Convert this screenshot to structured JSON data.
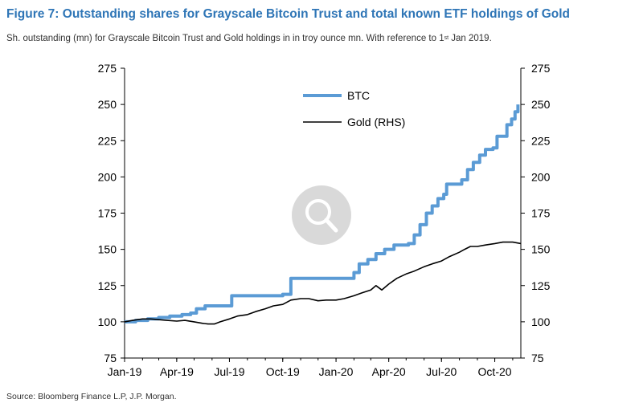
{
  "title": "Figure 7: Outstanding shares for Grayscale Bitcoin Trust and total known ETF holdings of Gold",
  "subtitle_main": "Sh. outstanding (mn) for Grayscale Bitcoin Trust and Gold holdings in in troy ounce mn. With reference to 1",
  "subtitle_sup": "st",
  "subtitle_end": " Jan 2019.",
  "source": "Source: Bloomberg Finance L.P, J.P. Morgan.",
  "colors": {
    "title": "#2e75b6",
    "btc": "#5b9bd5",
    "gold": "#000000",
    "watermark": "#d9d9d9"
  },
  "chart_data": {
    "type": "line",
    "x_ticks": [
      "Jan-19",
      "Apr-19",
      "Jul-19",
      "Oct-19",
      "Jan-20",
      "Apr-20",
      "Jul-20",
      "Oct-20"
    ],
    "x_range": [
      "2019-01-01",
      "2020-11-15"
    ],
    "ylim_left": [
      75,
      275
    ],
    "ylim_right": [
      75,
      275
    ],
    "y_ticks_left": [
      75,
      100,
      125,
      150,
      175,
      200,
      225,
      250,
      275
    ],
    "y_ticks_right": [
      75,
      100,
      125,
      150,
      175,
      200,
      225,
      250,
      275
    ],
    "legend_position": "top-center",
    "grid": false,
    "series": [
      {
        "name": "BTC",
        "axis": "left",
        "color": "#5b9bd5",
        "step": true,
        "points": [
          [
            "2019-01-01",
            100
          ],
          [
            "2019-01-20",
            101
          ],
          [
            "2019-02-10",
            102
          ],
          [
            "2019-03-01",
            103
          ],
          [
            "2019-03-20",
            104
          ],
          [
            "2019-04-10",
            105
          ],
          [
            "2019-04-25",
            106
          ],
          [
            "2019-05-05",
            109
          ],
          [
            "2019-05-20",
            111
          ],
          [
            "2019-07-01",
            111
          ],
          [
            "2019-07-05",
            118
          ],
          [
            "2019-09-30",
            118
          ],
          [
            "2019-10-01",
            119
          ],
          [
            "2019-10-15",
            130
          ],
          [
            "2020-01-31",
            130
          ],
          [
            "2020-02-01",
            134
          ],
          [
            "2020-02-10",
            140
          ],
          [
            "2020-02-25",
            143
          ],
          [
            "2020-03-10",
            147
          ],
          [
            "2020-03-25",
            150
          ],
          [
            "2020-04-10",
            153
          ],
          [
            "2020-04-25",
            153
          ],
          [
            "2020-05-05",
            154
          ],
          [
            "2020-05-15",
            160
          ],
          [
            "2020-05-25",
            167
          ],
          [
            "2020-06-05",
            175
          ],
          [
            "2020-06-15",
            180
          ],
          [
            "2020-06-25",
            185
          ],
          [
            "2020-07-05",
            188
          ],
          [
            "2020-07-10",
            195
          ],
          [
            "2020-07-25",
            195
          ],
          [
            "2020-08-05",
            198
          ],
          [
            "2020-08-15",
            205
          ],
          [
            "2020-08-25",
            210
          ],
          [
            "2020-09-05",
            215
          ],
          [
            "2020-09-15",
            219
          ],
          [
            "2020-09-28",
            220
          ],
          [
            "2020-10-05",
            228
          ],
          [
            "2020-10-20",
            228
          ],
          [
            "2020-10-22",
            236
          ],
          [
            "2020-10-30",
            240
          ],
          [
            "2020-11-05",
            245
          ],
          [
            "2020-11-10",
            250
          ]
        ]
      },
      {
        "name": "Gold (RHS)",
        "axis": "right",
        "color": "#000000",
        "step": false,
        "points": [
          [
            "2019-01-01",
            100
          ],
          [
            "2019-01-15",
            101
          ],
          [
            "2019-02-01",
            102
          ],
          [
            "2019-02-15",
            102
          ],
          [
            "2019-03-01",
            101.5
          ],
          [
            "2019-03-15",
            101
          ],
          [
            "2019-04-01",
            100.5
          ],
          [
            "2019-04-15",
            101
          ],
          [
            "2019-05-01",
            100
          ],
          [
            "2019-05-15",
            99
          ],
          [
            "2019-05-25",
            98.5
          ],
          [
            "2019-06-05",
            98.5
          ],
          [
            "2019-06-15",
            100
          ],
          [
            "2019-07-01",
            102
          ],
          [
            "2019-07-15",
            104
          ],
          [
            "2019-08-01",
            105
          ],
          [
            "2019-08-15",
            107
          ],
          [
            "2019-09-01",
            109
          ],
          [
            "2019-09-15",
            111
          ],
          [
            "2019-10-01",
            112
          ],
          [
            "2019-10-15",
            115
          ],
          [
            "2019-11-01",
            116
          ],
          [
            "2019-11-15",
            116
          ],
          [
            "2019-12-01",
            114.5
          ],
          [
            "2019-12-15",
            115
          ],
          [
            "2020-01-01",
            115
          ],
          [
            "2020-01-15",
            116
          ],
          [
            "2020-02-01",
            118
          ],
          [
            "2020-02-15",
            120
          ],
          [
            "2020-03-01",
            122
          ],
          [
            "2020-03-10",
            125
          ],
          [
            "2020-03-20",
            122
          ],
          [
            "2020-04-01",
            126
          ],
          [
            "2020-04-15",
            130
          ],
          [
            "2020-05-01",
            133
          ],
          [
            "2020-05-15",
            135
          ],
          [
            "2020-06-01",
            138
          ],
          [
            "2020-06-15",
            140
          ],
          [
            "2020-07-01",
            142
          ],
          [
            "2020-07-15",
            145
          ],
          [
            "2020-08-01",
            148
          ],
          [
            "2020-08-10",
            150
          ],
          [
            "2020-08-20",
            152
          ],
          [
            "2020-09-01",
            152
          ],
          [
            "2020-09-15",
            153
          ],
          [
            "2020-10-01",
            154
          ],
          [
            "2020-10-15",
            155
          ],
          [
            "2020-11-01",
            155
          ],
          [
            "2020-11-15",
            154
          ]
        ]
      }
    ]
  }
}
